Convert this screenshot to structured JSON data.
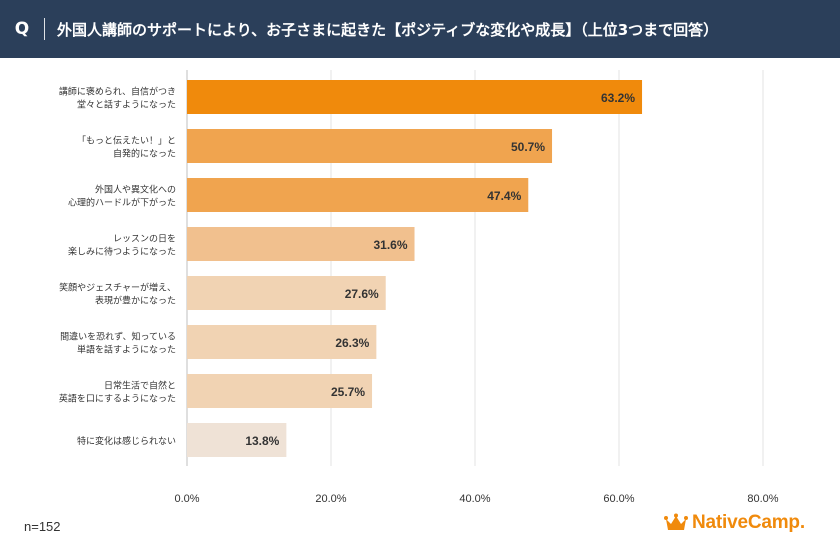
{
  "header": {
    "q_mark": "Q",
    "title": "外国人講師のサポートにより、お子さまに起きた【ポジティブな変化や成長】（上位3つまで回答）"
  },
  "chart_data": {
    "type": "bar",
    "orientation": "horizontal",
    "categories": [
      [
        "講師に褒められ、自信がつき",
        "堂々と話すようになった"
      ],
      [
        "「もっと伝えたい！」と",
        "自発的になった"
      ],
      [
        "外国人や異文化への",
        "心理的ハードルが下がった"
      ],
      [
        "レッスンの日を",
        "楽しみに待つようになった"
      ],
      [
        "笑顔やジェスチャーが増え、",
        "表現が豊かになった"
      ],
      [
        "間違いを恐れず、知っている",
        "単語を話すようになった"
      ],
      [
        "日常生活で自然と",
        "英語を口にするようになった"
      ],
      [
        "特に変化は感じられない"
      ]
    ],
    "values": [
      63.2,
      50.7,
      47.4,
      31.6,
      27.6,
      26.3,
      25.7,
      13.8
    ],
    "value_labels": [
      "63.2%",
      "50.7%",
      "47.4%",
      "31.6%",
      "27.6%",
      "26.3%",
      "25.7%",
      "13.8%"
    ],
    "bar_colors": [
      "#f08a0c",
      "#f0a44f",
      "#f0a44f",
      "#f1c08e",
      "#f1d3b3",
      "#f1d3b3",
      "#f1d3b3",
      "#efe2d6"
    ],
    "xlim": [
      0,
      80
    ],
    "x_ticks": [
      0,
      20,
      40,
      60,
      80
    ],
    "x_tick_labels": [
      "0.0%",
      "20.0%",
      "40.0%",
      "60.0%",
      "80.0%"
    ],
    "grid": true
  },
  "footer": {
    "n_label": "n=152",
    "logo_text": "NativeCamp.",
    "logo_color": "#f08a0c"
  }
}
